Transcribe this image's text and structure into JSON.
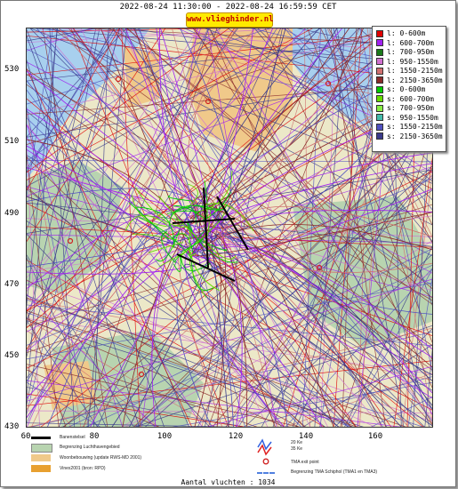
{
  "header": {
    "time_range": "2022-08-24 11:30:00 - 2022-08-24 16:59:59 CET",
    "site_label": "www.vlieghinder.nl"
  },
  "axes": {
    "x_ticks": [
      "60",
      "80",
      "100",
      "120",
      "140",
      "160"
    ],
    "y_ticks": [
      "530",
      "510",
      "490",
      "470",
      "450",
      "430"
    ]
  },
  "legend": [
    {
      "label": "l: 0-600m",
      "color": "#e00000"
    },
    {
      "label": "l: 600-700m",
      "color": "#a020f0"
    },
    {
      "label": "l: 700-950m",
      "color": "#1a7a1a"
    },
    {
      "label": "l: 950-1550m",
      "color": "#d070d0"
    },
    {
      "label": "l: 1550-2150m",
      "color": "#d07070"
    },
    {
      "label": "l: 2150-3650m",
      "color": "#8b2a2a"
    },
    {
      "label": "s: 0-600m",
      "color": "#00cc00"
    },
    {
      "label": "s: 600-700m",
      "color": "#66dd00"
    },
    {
      "label": "s: 700-950m",
      "color": "#88ee44"
    },
    {
      "label": "s: 950-1550m",
      "color": "#44bbaa"
    },
    {
      "label": "s: 1550-2150m",
      "color": "#5050c0"
    },
    {
      "label": "s: 2150-3650m",
      "color": "#3a3a8a"
    }
  ],
  "bottom_legend": {
    "runway": "Banenstelsel",
    "airport_boundary": "Begrenzing Luchthavengebied",
    "residential": "Woonbebouwing (update RWS-MD 2001)",
    "vinex": "Vinex2001 (bron: RPD)",
    "kv20": "20 Ke",
    "kv35": "35 Ke",
    "tma_exit": "TMA exit point",
    "tma_boundary": "Begrenzing TMA Schiphol (TMA1 en TMA3)"
  },
  "footer": {
    "flight_count": "Aantal vluchten : 1034"
  },
  "colors": {
    "land": "#ece8c8",
    "green_area": "#b8d4b0",
    "water": "#a8d0ee",
    "urban": "#f0c98a"
  }
}
